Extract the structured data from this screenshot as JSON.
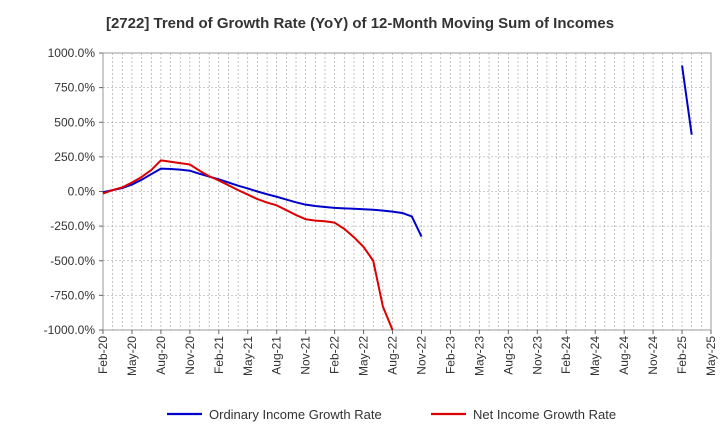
{
  "chart_data": {
    "type": "line",
    "title": "[2722]  Trend of Growth Rate (YoY) of 12-Month Moving Sum of Incomes",
    "xlabel": "",
    "ylabel": "",
    "ylim": [
      -1000,
      1000
    ],
    "y_ticks": [
      "1000.0%",
      "750.0%",
      "500.0%",
      "250.0%",
      "0.0%",
      "-250.0%",
      "-500.0%",
      "-750.0%",
      "-1000.0%"
    ],
    "x_ticks": [
      "Feb-20",
      "May-20",
      "Aug-20",
      "Nov-20",
      "Feb-21",
      "May-21",
      "Aug-21",
      "Nov-21",
      "Feb-22",
      "May-22",
      "Aug-22",
      "Nov-22",
      "Feb-23",
      "May-23",
      "Aug-23",
      "Nov-23",
      "Feb-24",
      "May-24",
      "Aug-24",
      "Nov-24",
      "Feb-25",
      "May-25"
    ],
    "x": [
      "Feb-20",
      "Mar-20",
      "Apr-20",
      "May-20",
      "Jun-20",
      "Jul-20",
      "Aug-20",
      "Sep-20",
      "Oct-20",
      "Nov-20",
      "Dec-20",
      "Jan-21",
      "Feb-21",
      "Mar-21",
      "Apr-21",
      "May-21",
      "Jun-21",
      "Jul-21",
      "Aug-21",
      "Sep-21",
      "Oct-21",
      "Nov-21",
      "Dec-21",
      "Jan-22",
      "Feb-22",
      "Mar-22",
      "Apr-22",
      "May-22",
      "Jun-22",
      "Jul-22",
      "Aug-22",
      "Sep-22",
      "Oct-22",
      "Nov-22",
      "Dec-22",
      "Jan-23",
      "Feb-23",
      "Mar-23",
      "Apr-23",
      "May-23",
      "Jun-23",
      "Jul-23",
      "Aug-23",
      "Sep-23",
      "Oct-23",
      "Nov-23",
      "Dec-23",
      "Jan-24",
      "Feb-24",
      "Mar-24",
      "Apr-24",
      "May-24",
      "Jun-24",
      "Jul-24",
      "Aug-24",
      "Sep-24",
      "Oct-24",
      "Nov-24",
      "Dec-24",
      "Jan-25",
      "Feb-25",
      "Mar-25",
      "Apr-25",
      "May-25"
    ],
    "grid": true,
    "legend_position": "bottom",
    "series": [
      {
        "name": "Ordinary Income Growth Rate",
        "color": "#0000cc",
        "values": [
          -5,
          10,
          25,
          50,
          85,
          125,
          165,
          162,
          158,
          150,
          128,
          108,
          88,
          65,
          42,
          22,
          0,
          -20,
          -38,
          -58,
          -78,
          -95,
          -105,
          -112,
          -118,
          -122,
          -125,
          -128,
          -132,
          -138,
          -145,
          -155,
          -180,
          -325,
          null,
          null,
          null,
          null,
          null,
          null,
          null,
          null,
          null,
          null,
          null,
          null,
          null,
          null,
          null,
          null,
          null,
          null,
          null,
          null,
          null,
          null,
          null,
          null,
          null,
          null,
          910,
          410,
          null,
          null
        ]
      },
      {
        "name": "Net Income Growth Rate",
        "color": "#dd0000",
        "values": [
          -15,
          10,
          30,
          65,
          105,
          155,
          225,
          215,
          205,
          195,
          150,
          110,
          80,
          45,
          10,
          -22,
          -55,
          -80,
          -100,
          -135,
          -170,
          -200,
          -210,
          -215,
          -225,
          -270,
          -330,
          -400,
          -500,
          -830,
          -1000,
          null,
          null,
          null,
          null,
          null,
          null,
          null,
          null,
          null,
          null,
          null,
          null,
          null,
          null,
          null,
          null,
          null,
          null,
          null,
          null,
          null,
          null,
          null,
          null,
          null,
          null,
          null,
          null,
          null,
          null,
          null,
          null,
          null
        ]
      }
    ]
  }
}
